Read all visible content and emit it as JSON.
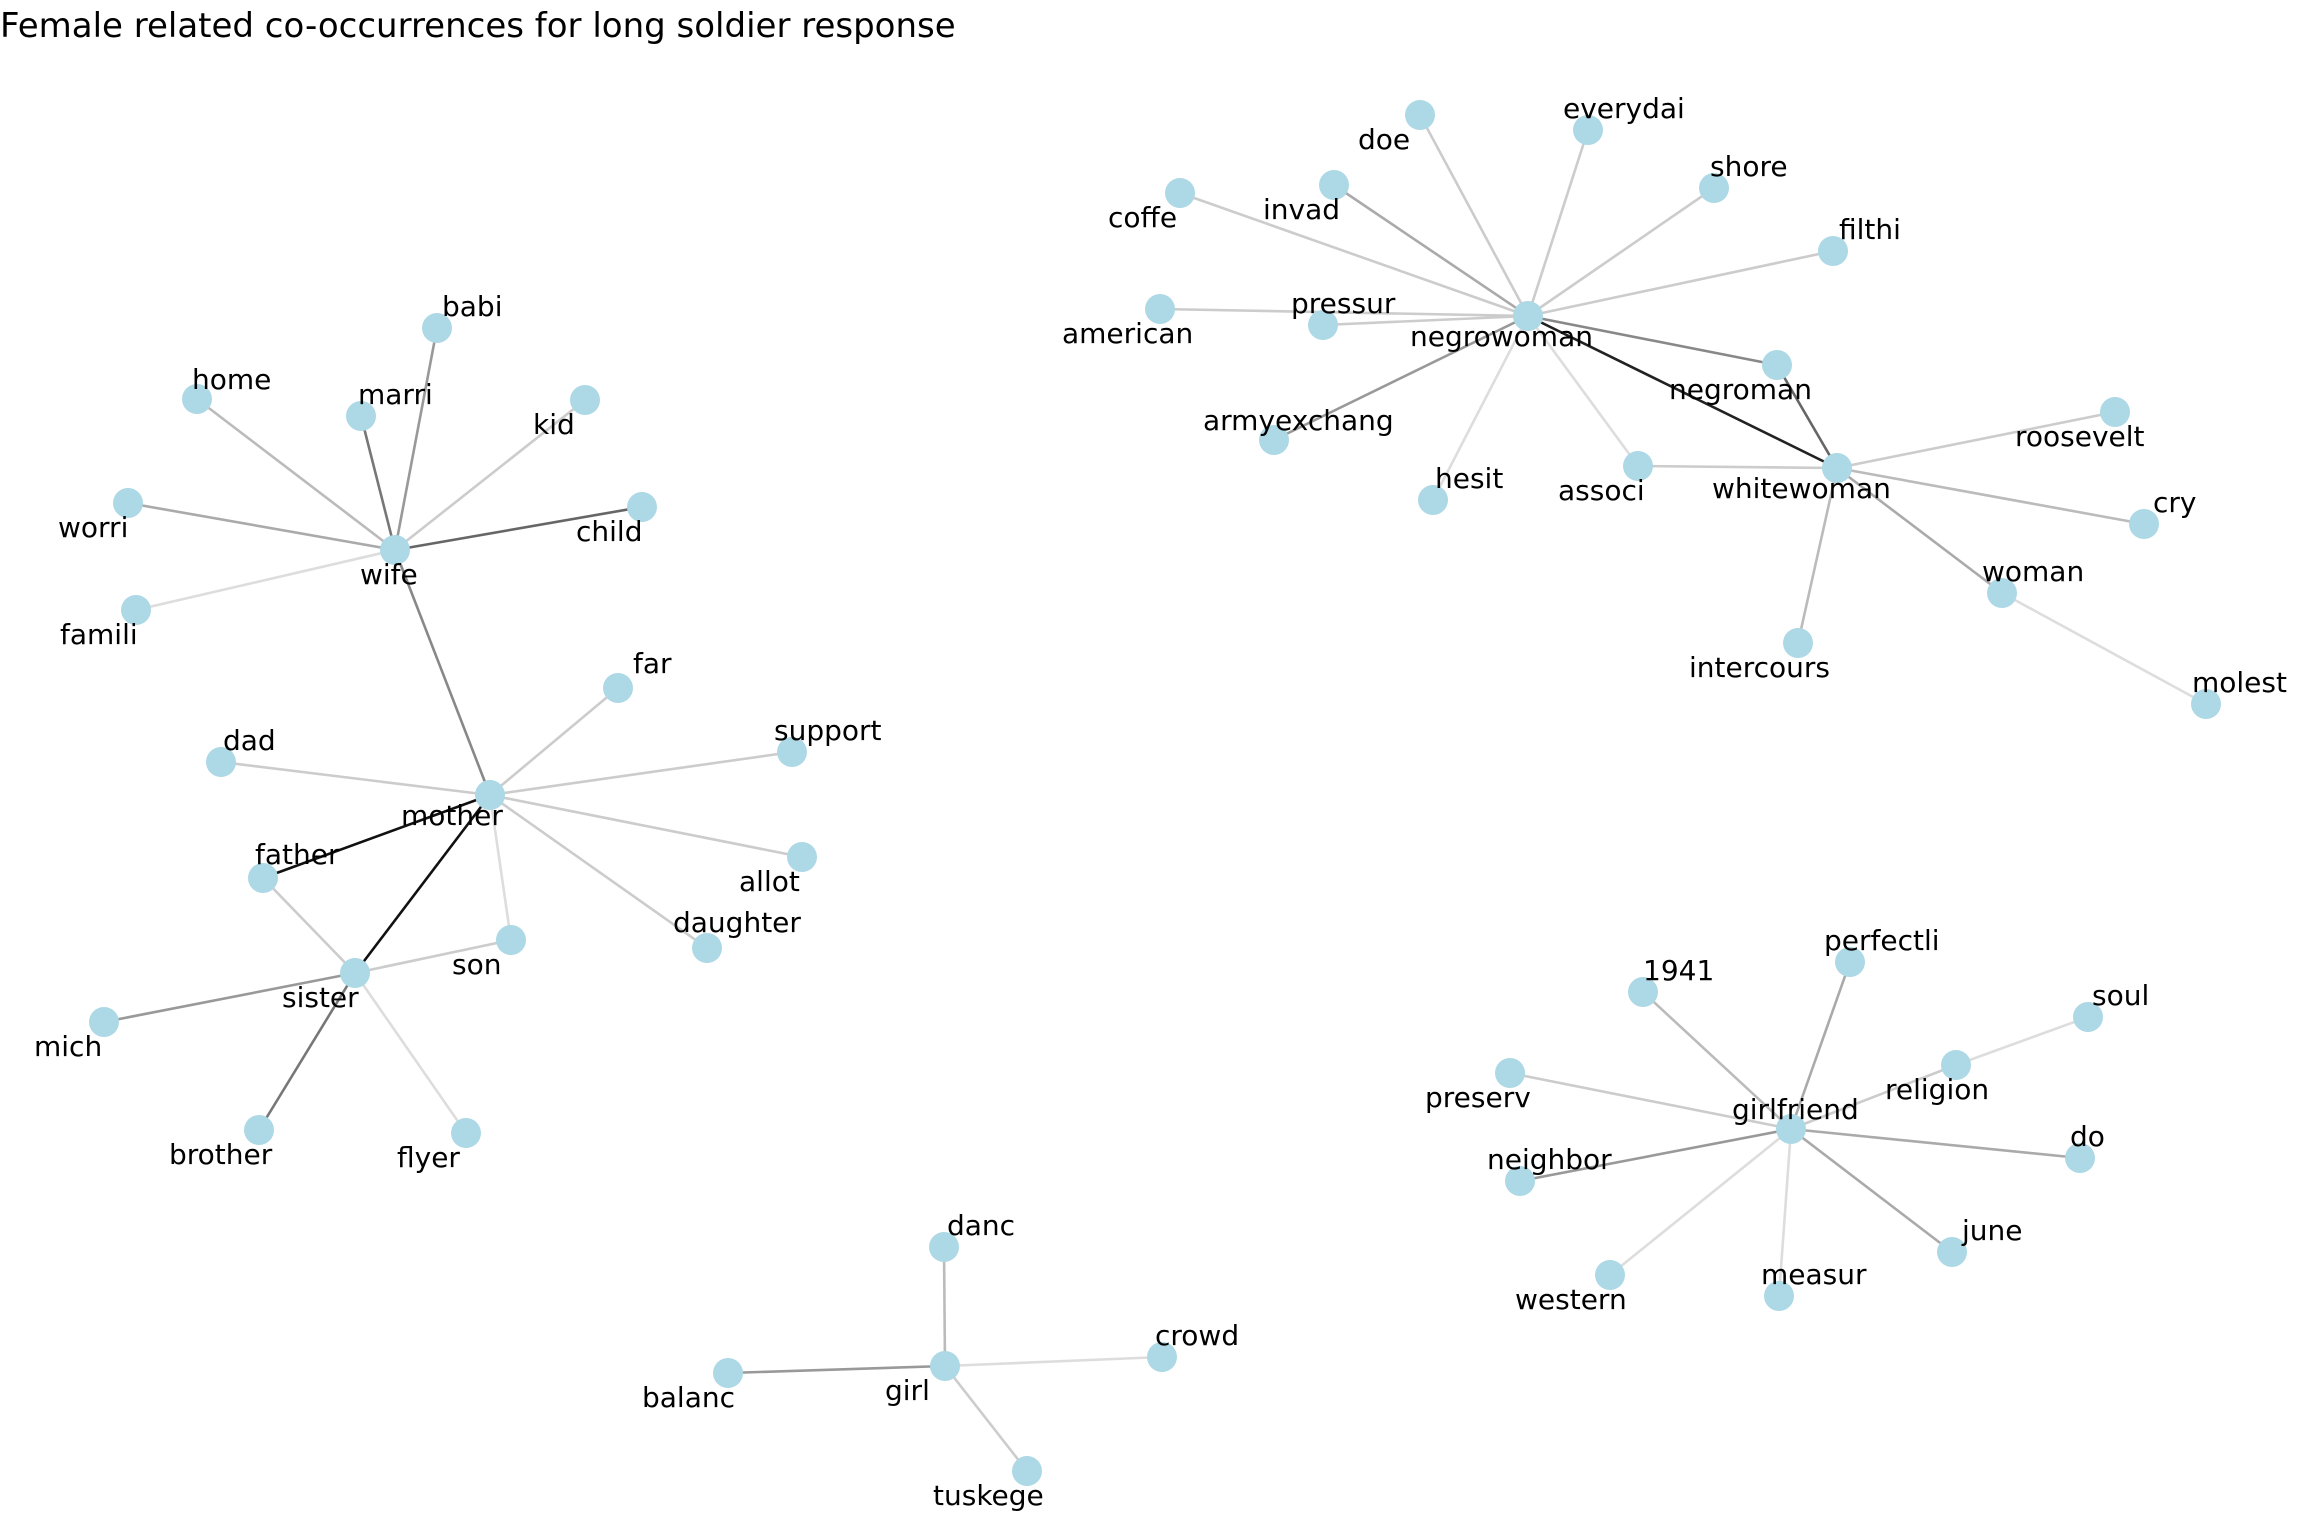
{
  "title": "Female related co-occurrences for long soldier response",
  "node_color": "#add8e6",
  "nodes": [
    {
      "id": "wife",
      "label": "wife"
    },
    {
      "id": "babi",
      "label": "babi"
    },
    {
      "id": "home",
      "label": "home"
    },
    {
      "id": "marri",
      "label": "marri"
    },
    {
      "id": "kid",
      "label": "kid"
    },
    {
      "id": "worri",
      "label": "worri"
    },
    {
      "id": "child",
      "label": "child"
    },
    {
      "id": "famili",
      "label": "famili"
    },
    {
      "id": "mother",
      "label": "mother"
    },
    {
      "id": "far",
      "label": "far"
    },
    {
      "id": "dad",
      "label": "dad"
    },
    {
      "id": "support",
      "label": "support"
    },
    {
      "id": "father",
      "label": "father"
    },
    {
      "id": "allot",
      "label": "allot"
    },
    {
      "id": "son",
      "label": "son"
    },
    {
      "id": "daughter",
      "label": "daughter"
    },
    {
      "id": "sister",
      "label": "sister"
    },
    {
      "id": "mich",
      "label": "mich"
    },
    {
      "id": "brother",
      "label": "brother"
    },
    {
      "id": "flyer",
      "label": "flyer"
    },
    {
      "id": "negrowoman",
      "label": "negrowoman"
    },
    {
      "id": "doe",
      "label": "doe"
    },
    {
      "id": "everydai",
      "label": "everydai"
    },
    {
      "id": "invad",
      "label": "invad"
    },
    {
      "id": "coffe",
      "label": "coffe"
    },
    {
      "id": "shore",
      "label": "shore"
    },
    {
      "id": "filthi",
      "label": "filthi"
    },
    {
      "id": "american",
      "label": "american"
    },
    {
      "id": "pressur",
      "label": "pressur"
    },
    {
      "id": "negroman",
      "label": "negroman"
    },
    {
      "id": "armyexchang",
      "label": "armyexchang"
    },
    {
      "id": "hesit",
      "label": "hesit"
    },
    {
      "id": "associ",
      "label": "associ"
    },
    {
      "id": "whitewoman",
      "label": "whitewoman"
    },
    {
      "id": "roosevelt",
      "label": "roosevelt"
    },
    {
      "id": "cry",
      "label": "cry"
    },
    {
      "id": "woman",
      "label": "woman"
    },
    {
      "id": "intercours",
      "label": "intercours"
    },
    {
      "id": "molest",
      "label": "molest"
    },
    {
      "id": "girlfriend",
      "label": "girlfriend"
    },
    {
      "id": "perfectli",
      "label": "perfectli"
    },
    {
      "id": "1941",
      "label": "1941"
    },
    {
      "id": "soul",
      "label": "soul"
    },
    {
      "id": "religion",
      "label": "religion"
    },
    {
      "id": "preserv",
      "label": "preserv"
    },
    {
      "id": "do",
      "label": "do"
    },
    {
      "id": "neighbor",
      "label": "neighbor"
    },
    {
      "id": "june",
      "label": "june"
    },
    {
      "id": "western",
      "label": "western"
    },
    {
      "id": "measur",
      "label": "measur"
    },
    {
      "id": "girl",
      "label": "girl"
    },
    {
      "id": "danc",
      "label": "danc"
    },
    {
      "id": "crowd",
      "label": "crowd"
    },
    {
      "id": "balanc",
      "label": "balanc"
    },
    {
      "id": "tuskege",
      "label": "tuskege"
    }
  ],
  "edges": [
    {
      "source": "wife",
      "target": "babi",
      "color": "#999999"
    },
    {
      "source": "wife",
      "target": "home",
      "color": "#bbbbbb"
    },
    {
      "source": "wife",
      "target": "marri",
      "color": "#777777"
    },
    {
      "source": "wife",
      "target": "kid",
      "color": "#cccccc"
    },
    {
      "source": "wife",
      "target": "worri",
      "color": "#aaaaaa"
    },
    {
      "source": "wife",
      "target": "child",
      "color": "#666666"
    },
    {
      "source": "wife",
      "target": "famili",
      "color": "#dddddd"
    },
    {
      "source": "wife",
      "target": "mother",
      "color": "#888888"
    },
    {
      "source": "mother",
      "target": "far",
      "color": "#cccccc"
    },
    {
      "source": "mother",
      "target": "dad",
      "color": "#cccccc"
    },
    {
      "source": "mother",
      "target": "support",
      "color": "#cccccc"
    },
    {
      "source": "mother",
      "target": "father",
      "color": "#111111"
    },
    {
      "source": "mother",
      "target": "allot",
      "color": "#cccccc"
    },
    {
      "source": "mother",
      "target": "son",
      "color": "#dddddd"
    },
    {
      "source": "mother",
      "target": "daughter",
      "color": "#cccccc"
    },
    {
      "source": "mother",
      "target": "sister",
      "color": "#111111"
    },
    {
      "source": "sister",
      "target": "father",
      "color": "#cccccc"
    },
    {
      "source": "sister",
      "target": "son",
      "color": "#cccccc"
    },
    {
      "source": "sister",
      "target": "mich",
      "color": "#999999"
    },
    {
      "source": "sister",
      "target": "brother",
      "color": "#777777"
    },
    {
      "source": "sister",
      "target": "flyer",
      "color": "#dddddd"
    },
    {
      "source": "negrowoman",
      "target": "doe",
      "color": "#cccccc"
    },
    {
      "source": "negrowoman",
      "target": "everydai",
      "color": "#cccccc"
    },
    {
      "source": "negrowoman",
      "target": "invad",
      "color": "#aaaaaa"
    },
    {
      "source": "negrowoman",
      "target": "coffe",
      "color": "#cccccc"
    },
    {
      "source": "negrowoman",
      "target": "shore",
      "color": "#cccccc"
    },
    {
      "source": "negrowoman",
      "target": "filthi",
      "color": "#cccccc"
    },
    {
      "source": "negrowoman",
      "target": "american",
      "color": "#cccccc"
    },
    {
      "source": "negrowoman",
      "target": "pressur",
      "color": "#cccccc"
    },
    {
      "source": "negrowoman",
      "target": "negroman",
      "color": "#888888"
    },
    {
      "source": "negrowoman",
      "target": "armyexchang",
      "color": "#999999"
    },
    {
      "source": "negrowoman",
      "target": "hesit",
      "color": "#dddddd"
    },
    {
      "source": "negrowoman",
      "target": "associ",
      "color": "#dddddd"
    },
    {
      "source": "negrowoman",
      "target": "whitewoman",
      "color": "#222222"
    },
    {
      "source": "whitewoman",
      "target": "negroman",
      "color": "#666666"
    },
    {
      "source": "whitewoman",
      "target": "associ",
      "color": "#cccccc"
    },
    {
      "source": "whitewoman",
      "target": "roosevelt",
      "color": "#cccccc"
    },
    {
      "source": "whitewoman",
      "target": "cry",
      "color": "#bbbbbb"
    },
    {
      "source": "whitewoman",
      "target": "woman",
      "color": "#aaaaaa"
    },
    {
      "source": "whitewoman",
      "target": "intercours",
      "color": "#bbbbbb"
    },
    {
      "source": "woman",
      "target": "molest",
      "color": "#dddddd"
    },
    {
      "source": "girlfriend",
      "target": "perfectli",
      "color": "#aaaaaa"
    },
    {
      "source": "girlfriend",
      "target": "1941",
      "color": "#bbbbbb"
    },
    {
      "source": "girlfriend",
      "target": "religion",
      "color": "#cccccc"
    },
    {
      "source": "religion",
      "target": "soul",
      "color": "#dddddd"
    },
    {
      "source": "girlfriend",
      "target": "preserv",
      "color": "#cccccc"
    },
    {
      "source": "girlfriend",
      "target": "do",
      "color": "#aaaaaa"
    },
    {
      "source": "girlfriend",
      "target": "neighbor",
      "color": "#999999"
    },
    {
      "source": "girlfriend",
      "target": "june",
      "color": "#aaaaaa"
    },
    {
      "source": "girlfriend",
      "target": "western",
      "color": "#dddddd"
    },
    {
      "source": "girlfriend",
      "target": "measur",
      "color": "#dddddd"
    },
    {
      "source": "girl",
      "target": "danc",
      "color": "#bbbbbb"
    },
    {
      "source": "girl",
      "target": "crowd",
      "color": "#dddddd"
    },
    {
      "source": "girl",
      "target": "balanc",
      "color": "#999999"
    },
    {
      "source": "girl",
      "target": "tuskege",
      "color": "#cccccc"
    }
  ]
}
